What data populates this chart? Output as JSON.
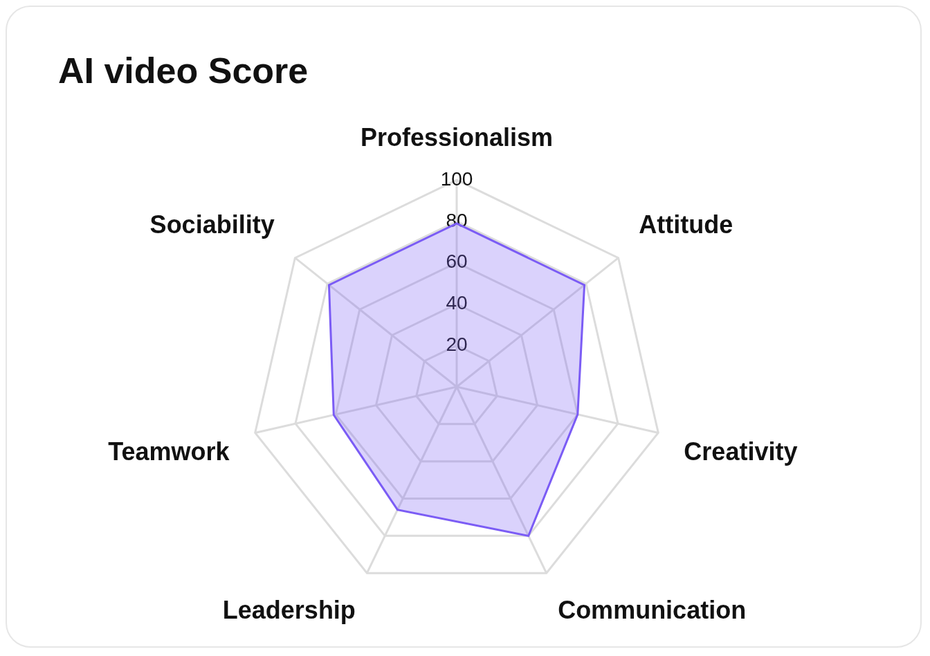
{
  "chart_data": {
    "type": "radar",
    "title": "AI video Score",
    "categories": [
      "Professionalism",
      "Attitude",
      "Creativity",
      "Communication",
      "Leadership",
      "Teamwork",
      "Sociability"
    ],
    "series": [
      {
        "color": "#7b5cf5",
        "values": [
          79,
          79,
          60,
          80,
          66,
          61,
          79
        ]
      }
    ],
    "ylim": [
      0,
      100
    ],
    "yticks": [
      20,
      40,
      60,
      80,
      100
    ],
    "grid": true,
    "marker": "none"
  }
}
